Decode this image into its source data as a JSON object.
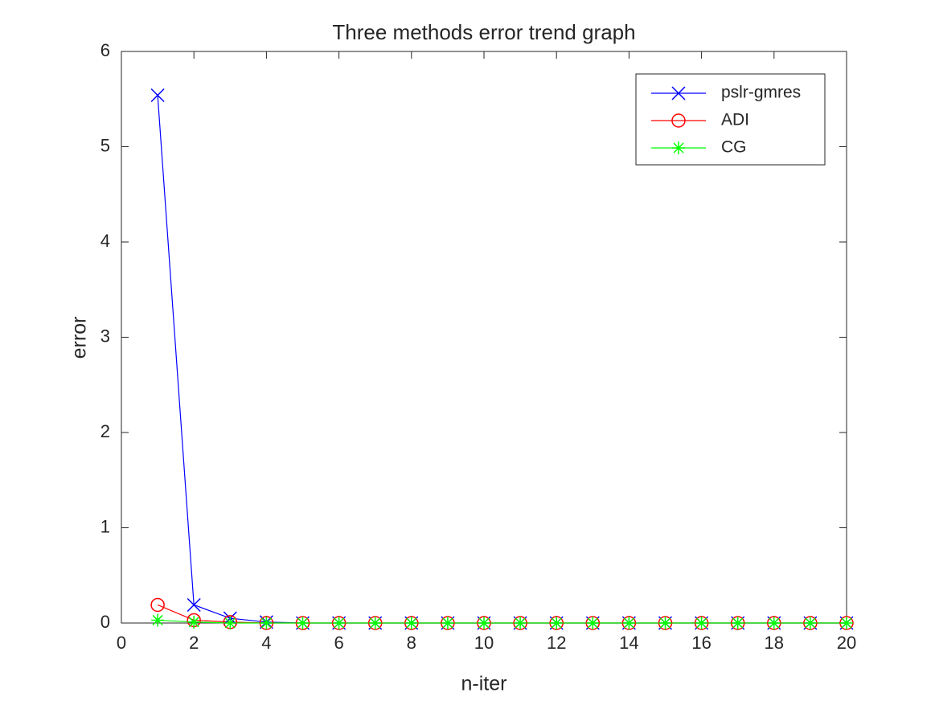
{
  "chart_data": {
    "type": "line",
    "title": "Three methods error trend graph",
    "x_label": "n-iter",
    "y_label": "error",
    "x": [
      1,
      2,
      3,
      4,
      5,
      6,
      7,
      8,
      9,
      10,
      11,
      12,
      13,
      14,
      15,
      16,
      17,
      18,
      19,
      20
    ],
    "series": [
      {
        "name": "pslr-gmres",
        "color": "#0000ff",
        "marker": "x",
        "values": [
          5.54,
          0.19,
          0.05,
          0.01,
          0,
          0,
          0,
          0,
          0,
          0,
          0,
          0,
          0,
          0,
          0,
          0,
          0,
          0,
          0,
          0
        ]
      },
      {
        "name": "ADI",
        "color": "#ff0000",
        "marker": "o",
        "values": [
          0.19,
          0.03,
          0.01,
          0,
          0,
          0,
          0,
          0,
          0,
          0,
          0,
          0,
          0,
          0,
          0,
          0,
          0,
          0,
          0,
          0
        ]
      },
      {
        "name": "CG",
        "color": "#00ff00",
        "marker": "*",
        "values": [
          0.03,
          0.01,
          0,
          0,
          0,
          0,
          0,
          0,
          0,
          0,
          0,
          0,
          0,
          0,
          0,
          0,
          0,
          0,
          0,
          0
        ]
      }
    ],
    "xlim": [
      0,
      20
    ],
    "xticks": [
      0,
      2,
      4,
      6,
      8,
      10,
      12,
      14,
      16,
      18,
      20
    ],
    "ylim": [
      0,
      6
    ],
    "yticks": [
      0,
      1,
      2,
      3,
      4,
      5,
      6
    ],
    "legend": "top-right"
  }
}
